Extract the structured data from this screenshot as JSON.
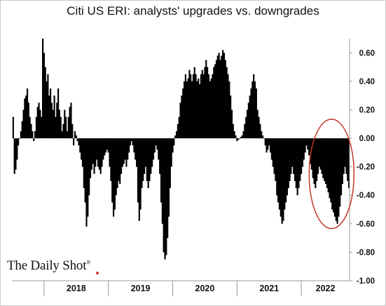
{
  "title": "Citi US ERI: analysts' upgrades vs. downgrades",
  "logo": {
    "text": "The Daily Shot",
    "mark": "®"
  },
  "colors": {
    "bars": "#000000",
    "highlight_ellipse": "#c0392b",
    "axis": "#999999",
    "logo_dot": "#d0312d"
  },
  "chart_data": {
    "type": "bar",
    "title": "Citi US ERI: analysts' upgrades vs. downgrades",
    "xlabel": "",
    "ylabel": "",
    "ylim": [
      -1.0,
      0.7
    ],
    "y_axis_side": "right",
    "yticks": [
      0.6,
      0.4,
      0.2,
      0.0,
      -0.2,
      -0.4,
      -0.6,
      -0.8,
      -1.0
    ],
    "ytick_labels": [
      "0.60",
      "0.40",
      "0.20",
      "0.00",
      "-0.20",
      "-0.40",
      "-0.60",
      "-0.80",
      "-1.00"
    ],
    "x_categories": [
      "2018",
      "2019",
      "2020",
      "2021",
      "2022"
    ],
    "x_range": [
      2017.5,
      2022.75
    ],
    "grid": false,
    "annotation": "red ellipse highlighting 2022 negative readings",
    "series": [
      {
        "values": [
          [
            2017.52,
            0.15
          ],
          [
            2017.54,
            -0.25
          ],
          [
            2017.56,
            -0.22
          ],
          [
            2017.58,
            -0.15
          ],
          [
            2017.6,
            -0.05
          ],
          [
            2017.62,
            0.0
          ],
          [
            2017.64,
            0.05
          ],
          [
            2017.66,
            0.12
          ],
          [
            2017.68,
            0.2
          ],
          [
            2017.7,
            0.28
          ],
          [
            2017.72,
            0.3
          ],
          [
            2017.74,
            0.35
          ],
          [
            2017.76,
            0.25
          ],
          [
            2017.78,
            0.15
          ],
          [
            2017.8,
            0.1
          ],
          [
            2017.82,
            0.05
          ],
          [
            2017.84,
            -0.02
          ],
          [
            2017.86,
            0.05
          ],
          [
            2017.88,
            0.15
          ],
          [
            2017.9,
            0.22
          ],
          [
            2017.92,
            0.25
          ],
          [
            2017.94,
            0.2
          ],
          [
            2017.96,
            0.15
          ],
          [
            2017.98,
            0.7
          ],
          [
            2018.0,
            0.6
          ],
          [
            2018.02,
            0.5
          ],
          [
            2018.04,
            0.4
          ],
          [
            2018.06,
            0.45
          ],
          [
            2018.08,
            0.3
          ],
          [
            2018.1,
            0.35
          ],
          [
            2018.12,
            0.25
          ],
          [
            2018.14,
            0.2
          ],
          [
            2018.16,
            0.3
          ],
          [
            2018.18,
            0.15
          ],
          [
            2018.2,
            0.25
          ],
          [
            2018.22,
            0.35
          ],
          [
            2018.24,
            0.2
          ],
          [
            2018.26,
            0.15
          ],
          [
            2018.28,
            0.05
          ],
          [
            2018.3,
            0.1
          ],
          [
            2018.32,
            0.2
          ],
          [
            2018.34,
            0.15
          ],
          [
            2018.36,
            0.05
          ],
          [
            2018.38,
            0.15
          ],
          [
            2018.4,
            0.22
          ],
          [
            2018.42,
            0.25
          ],
          [
            2018.44,
            0.1
          ],
          [
            2018.46,
            -0.05
          ],
          [
            2018.48,
            0.05
          ],
          [
            2018.5,
            0.02
          ],
          [
            2018.52,
            -0.02
          ],
          [
            2018.54,
            -0.05
          ],
          [
            2018.56,
            -0.1
          ],
          [
            2018.58,
            -0.15
          ],
          [
            2018.6,
            -0.2
          ],
          [
            2018.62,
            -0.35
          ],
          [
            2018.64,
            -0.45
          ],
          [
            2018.66,
            -0.62
          ],
          [
            2018.68,
            -0.55
          ],
          [
            2018.7,
            -0.4
          ],
          [
            2018.72,
            -0.28
          ],
          [
            2018.74,
            -0.22
          ],
          [
            2018.76,
            -0.18
          ],
          [
            2018.78,
            -0.25
          ],
          [
            2018.8,
            -0.2
          ],
          [
            2018.82,
            -0.15
          ],
          [
            2018.84,
            -0.2
          ],
          [
            2018.86,
            -0.22
          ],
          [
            2018.88,
            -0.25
          ],
          [
            2018.9,
            -0.2
          ],
          [
            2018.92,
            -0.15
          ],
          [
            2018.94,
            -0.12
          ],
          [
            2018.96,
            -0.1
          ],
          [
            2018.98,
            -0.08
          ],
          [
            2019.0,
            -0.1
          ],
          [
            2019.02,
            -0.2
          ],
          [
            2019.04,
            -0.3
          ],
          [
            2019.06,
            -0.45
          ],
          [
            2019.08,
            -0.55
          ],
          [
            2019.1,
            -0.5
          ],
          [
            2019.12,
            -0.4
          ],
          [
            2019.14,
            -0.35
          ],
          [
            2019.16,
            -0.3
          ],
          [
            2019.18,
            -0.32
          ],
          [
            2019.2,
            -0.25
          ],
          [
            2019.22,
            -0.2
          ],
          [
            2019.24,
            -0.18
          ],
          [
            2019.26,
            -0.15
          ],
          [
            2019.28,
            -0.2
          ],
          [
            2019.3,
            -0.15
          ],
          [
            2019.32,
            -0.1
          ],
          [
            2019.34,
            -0.05
          ],
          [
            2019.36,
            -0.02
          ],
          [
            2019.38,
            -0.05
          ],
          [
            2019.4,
            -0.1
          ],
          [
            2019.42,
            -0.15
          ],
          [
            2019.44,
            -0.2
          ],
          [
            2019.46,
            -0.45
          ],
          [
            2019.48,
            -0.58
          ],
          [
            2019.5,
            -0.5
          ],
          [
            2019.52,
            -0.35
          ],
          [
            2019.54,
            -0.3
          ],
          [
            2019.56,
            -0.25
          ],
          [
            2019.58,
            -0.2
          ],
          [
            2019.6,
            -0.3
          ],
          [
            2019.62,
            -0.35
          ],
          [
            2019.64,
            -0.3
          ],
          [
            2019.66,
            -0.25
          ],
          [
            2019.68,
            -0.2
          ],
          [
            2019.7,
            -0.15
          ],
          [
            2019.72,
            -0.1
          ],
          [
            2019.74,
            -0.05
          ],
          [
            2019.76,
            -0.08
          ],
          [
            2019.78,
            -0.15
          ],
          [
            2019.8,
            -0.25
          ],
          [
            2019.82,
            -0.45
          ],
          [
            2019.84,
            -0.6
          ],
          [
            2019.86,
            -0.8
          ],
          [
            2019.88,
            -0.85
          ],
          [
            2019.9,
            -0.82
          ],
          [
            2019.92,
            -0.7
          ],
          [
            2019.94,
            -0.55
          ],
          [
            2019.96,
            -0.35
          ],
          [
            2019.98,
            -0.2
          ],
          [
            2020.0,
            -0.1
          ],
          [
            2020.02,
            -0.05
          ],
          [
            2020.04,
            0.02
          ],
          [
            2020.06,
            0.05
          ],
          [
            2020.08,
            0.1
          ],
          [
            2020.1,
            0.15
          ],
          [
            2020.12,
            0.25
          ],
          [
            2020.14,
            0.3
          ],
          [
            2020.16,
            0.35
          ],
          [
            2020.18,
            0.4
          ],
          [
            2020.2,
            0.45
          ],
          [
            2020.22,
            0.4
          ],
          [
            2020.24,
            0.42
          ],
          [
            2020.26,
            0.48
          ],
          [
            2020.28,
            0.45
          ],
          [
            2020.3,
            0.4
          ],
          [
            2020.32,
            0.45
          ],
          [
            2020.34,
            0.5
          ],
          [
            2020.36,
            0.45
          ],
          [
            2020.38,
            0.4
          ],
          [
            2020.4,
            0.42
          ],
          [
            2020.42,
            0.38
          ],
          [
            2020.44,
            0.45
          ],
          [
            2020.46,
            0.48
          ],
          [
            2020.48,
            0.45
          ],
          [
            2020.5,
            0.5
          ],
          [
            2020.52,
            0.55
          ],
          [
            2020.54,
            0.5
          ],
          [
            2020.56,
            0.45
          ],
          [
            2020.58,
            0.4
          ],
          [
            2020.6,
            0.42
          ],
          [
            2020.62,
            0.45
          ],
          [
            2020.64,
            0.5
          ],
          [
            2020.66,
            0.52
          ],
          [
            2020.68,
            0.55
          ],
          [
            2020.7,
            0.58
          ],
          [
            2020.72,
            0.6
          ],
          [
            2020.74,
            0.55
          ],
          [
            2020.76,
            0.58
          ],
          [
            2020.78,
            0.62
          ],
          [
            2020.8,
            0.6
          ],
          [
            2020.82,
            0.55
          ],
          [
            2020.84,
            0.5
          ],
          [
            2020.86,
            0.45
          ],
          [
            2020.88,
            0.4
          ],
          [
            2020.9,
            0.3
          ],
          [
            2020.92,
            0.2
          ],
          [
            2020.94,
            0.1
          ],
          [
            2020.96,
            0.05
          ],
          [
            2020.98,
            0.02
          ],
          [
            2021.0,
            -0.02
          ],
          [
            2021.02,
            -0.01
          ],
          [
            2021.04,
            0.0
          ],
          [
            2021.06,
            0.01
          ],
          [
            2021.08,
            0.02
          ],
          [
            2021.1,
            0.05
          ],
          [
            2021.12,
            0.1
          ],
          [
            2021.14,
            0.15
          ],
          [
            2021.16,
            0.2
          ],
          [
            2021.18,
            0.25
          ],
          [
            2021.2,
            0.3
          ],
          [
            2021.22,
            0.35
          ],
          [
            2021.24,
            0.4
          ],
          [
            2021.26,
            0.45
          ],
          [
            2021.28,
            0.4
          ],
          [
            2021.3,
            0.35
          ],
          [
            2021.32,
            0.2
          ],
          [
            2021.34,
            0.15
          ],
          [
            2021.36,
            0.1
          ],
          [
            2021.38,
            0.05
          ],
          [
            2021.4,
            0.02
          ],
          [
            2021.42,
            0.0
          ],
          [
            2021.44,
            -0.05
          ],
          [
            2021.46,
            -0.1
          ],
          [
            2021.48,
            -0.08
          ],
          [
            2021.5,
            -0.05
          ],
          [
            2021.52,
            -0.1
          ],
          [
            2021.54,
            -0.15
          ],
          [
            2021.56,
            -0.2
          ],
          [
            2021.58,
            -0.25
          ],
          [
            2021.6,
            -0.3
          ],
          [
            2021.62,
            -0.4
          ],
          [
            2021.64,
            -0.45
          ],
          [
            2021.66,
            -0.5
          ],
          [
            2021.68,
            -0.55
          ],
          [
            2021.7,
            -0.6
          ],
          [
            2021.72,
            -0.58
          ],
          [
            2021.74,
            -0.5
          ],
          [
            2021.76,
            -0.45
          ],
          [
            2021.78,
            -0.4
          ],
          [
            2021.8,
            -0.35
          ],
          [
            2021.82,
            -0.3
          ],
          [
            2021.84,
            -0.25
          ],
          [
            2021.86,
            -0.2
          ],
          [
            2021.88,
            -0.25
          ],
          [
            2021.9,
            -0.3
          ],
          [
            2021.92,
            -0.35
          ],
          [
            2021.94,
            -0.4
          ],
          [
            2021.96,
            -0.35
          ],
          [
            2021.98,
            -0.3
          ],
          [
            2022.0,
            -0.25
          ],
          [
            2022.02,
            -0.2
          ],
          [
            2022.04,
            -0.15
          ],
          [
            2022.06,
            -0.1
          ],
          [
            2022.08,
            -0.05
          ],
          [
            2022.1,
            -0.08
          ],
          [
            2022.12,
            -0.12
          ],
          [
            2022.14,
            -0.18
          ],
          [
            2022.16,
            -0.22
          ],
          [
            2022.18,
            -0.28
          ],
          [
            2022.2,
            -0.32
          ],
          [
            2022.22,
            -0.35
          ],
          [
            2022.24,
            -0.3
          ],
          [
            2022.26,
            -0.25
          ],
          [
            2022.28,
            -0.2
          ],
          [
            2022.3,
            -0.22
          ],
          [
            2022.32,
            -0.25
          ],
          [
            2022.34,
            -0.28
          ],
          [
            2022.36,
            -0.3
          ],
          [
            2022.38,
            -0.32
          ],
          [
            2022.4,
            -0.35
          ],
          [
            2022.42,
            -0.38
          ],
          [
            2022.44,
            -0.42
          ],
          [
            2022.46,
            -0.45
          ],
          [
            2022.48,
            -0.5
          ],
          [
            2022.5,
            -0.52
          ],
          [
            2022.52,
            -0.55
          ],
          [
            2022.54,
            -0.58
          ],
          [
            2022.56,
            -0.6
          ],
          [
            2022.58,
            -0.55
          ],
          [
            2022.6,
            -0.48
          ],
          [
            2022.62,
            -0.4
          ],
          [
            2022.64,
            -0.32
          ],
          [
            2022.66,
            -0.25
          ],
          [
            2022.68,
            -0.2
          ],
          [
            2022.7,
            -0.25
          ],
          [
            2022.72,
            -0.3
          ],
          [
            2022.74,
            -0.35
          ]
        ]
      }
    ]
  }
}
